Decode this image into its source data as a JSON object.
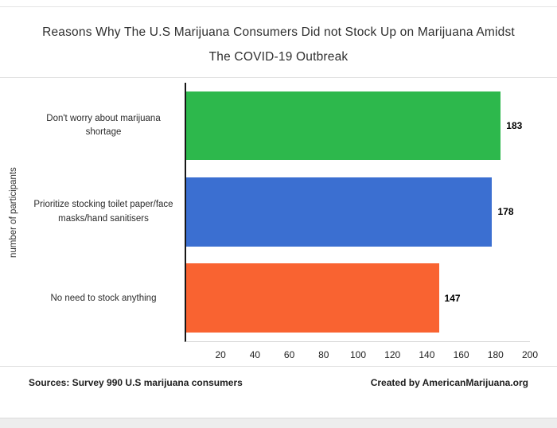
{
  "header": {
    "title_line1": "Reasons Why The U.S Marijuana Consumers Did not Stock Up on Marijuana Amidst",
    "title_line2": "The COVID-19 Outbreak"
  },
  "chart_data": {
    "type": "bar",
    "orientation": "horizontal",
    "title": "Reasons Why The U.S Marijuana Consumers Did not Stock Up on Marijuana Amidst The COVID-19 Outbreak",
    "ylabel": "number of participants",
    "categories": [
      "Don't worry about marijuana shortage",
      "Prioritize stocking toilet paper/face masks/hand sanitisers",
      "No need to stock anything"
    ],
    "values": [
      183,
      178,
      147
    ],
    "bar_colors": [
      "#2db84c",
      "#3b6fd1",
      "#f96331"
    ],
    "xlim": [
      0,
      200
    ],
    "xticks": [
      20,
      40,
      60,
      80,
      100,
      120,
      140,
      160,
      180,
      200
    ],
    "grid": false,
    "value_labels": true,
    "legend": "none"
  },
  "footer": {
    "source": "Sources: Survey 990 U.S marijuana consumers",
    "credit": "Created by AmericanMarijuana.org"
  }
}
